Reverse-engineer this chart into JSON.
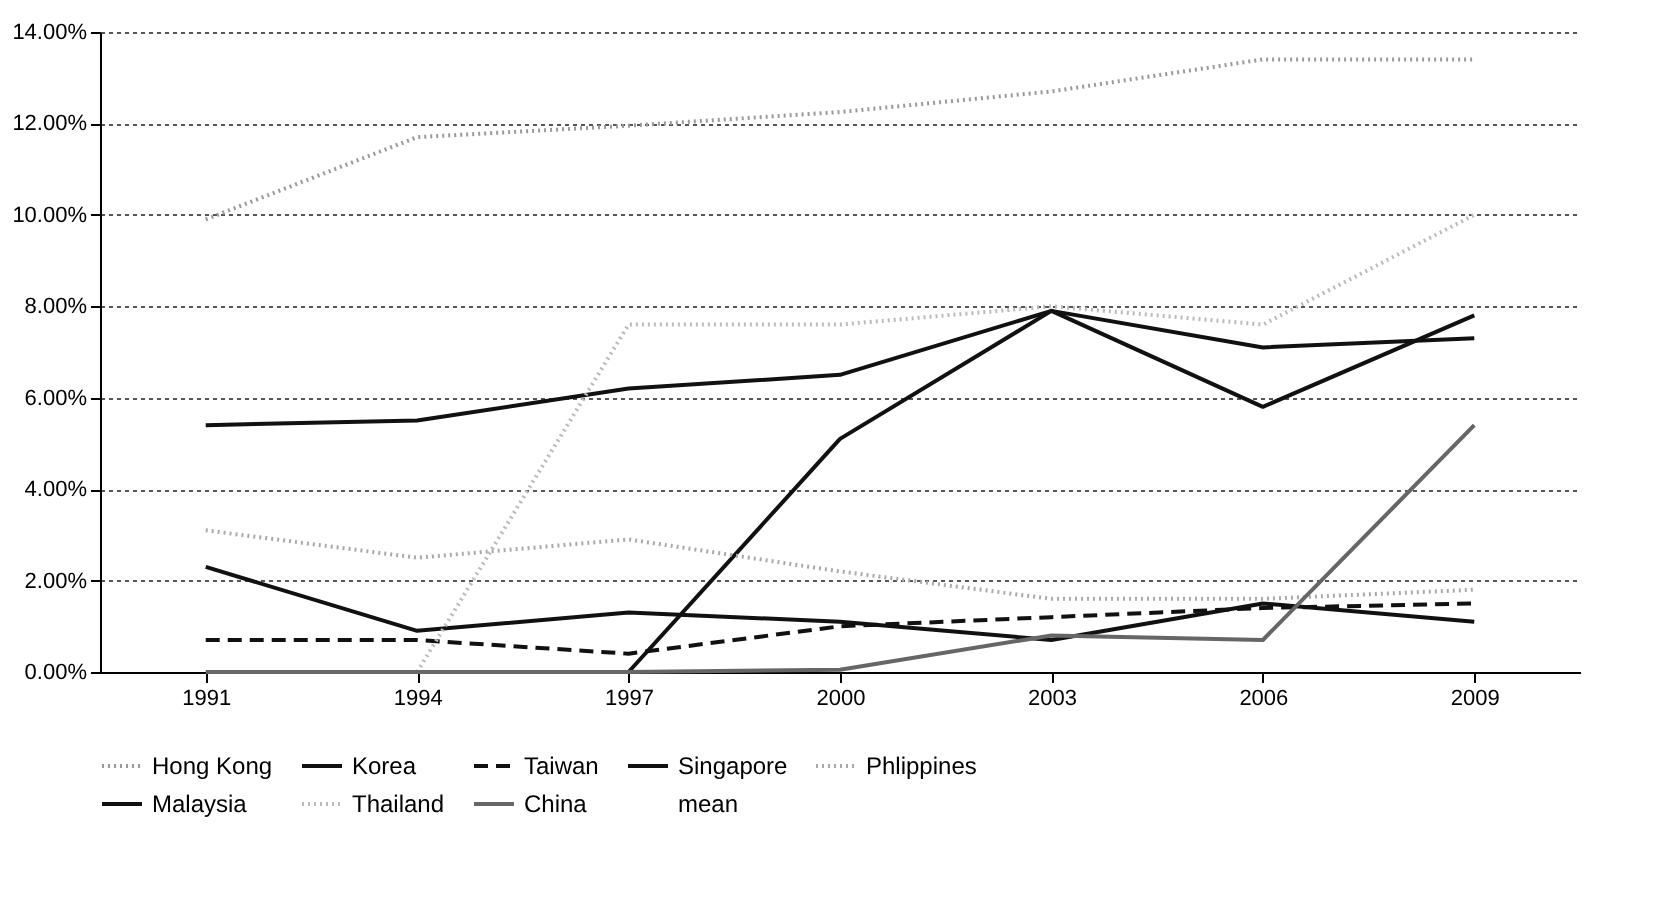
{
  "chart_data": {
    "type": "line",
    "categories": [
      "1991",
      "1994",
      "1997",
      "2000",
      "2003",
      "2006",
      "2009"
    ],
    "series": [
      {
        "name": "Hong Kong",
        "color": "#9a9a9a",
        "line_style": "dotted",
        "values": [
          9.9,
          11.7,
          11.95,
          12.25,
          12.7,
          13.4,
          13.4
        ]
      },
      {
        "name": "Korea",
        "color": "#111111",
        "line_style": "solid",
        "values": [
          5.4,
          5.5,
          6.2,
          6.5,
          7.9,
          7.1,
          7.3
        ]
      },
      {
        "name": "Taiwan",
        "color": "#111111",
        "line_style": "dashed",
        "values": [
          0.7,
          0.7,
          0.4,
          1.0,
          1.2,
          1.4,
          1.5
        ]
      },
      {
        "name": "Singapore",
        "color": "#111111",
        "line_style": "solid",
        "values": [
          null,
          null,
          0.0,
          5.1,
          7.9,
          5.8,
          7.8
        ]
      },
      {
        "name": "Phlippines",
        "color": "#aaaaaa",
        "line_style": "dotted",
        "values": [
          3.1,
          2.5,
          2.9,
          2.2,
          1.6,
          1.6,
          1.8
        ]
      },
      {
        "name": "Malaysia",
        "color": "#111111",
        "line_style": "solid",
        "values": [
          2.3,
          0.9,
          1.3,
          1.1,
          0.7,
          1.5,
          1.1
        ]
      },
      {
        "name": "Thailand",
        "color": "#bbbbbb",
        "line_style": "dotted",
        "values": [
          null,
          0.0,
          7.6,
          7.6,
          8.0,
          7.6,
          10.0
        ]
      },
      {
        "name": "China",
        "color": "#666666",
        "line_style": "solid",
        "values": [
          0.0,
          0.0,
          0.0,
          0.05,
          0.8,
          0.7,
          5.4
        ]
      },
      {
        "name": "mean",
        "values": [
          null,
          null,
          null,
          null,
          null,
          null,
          null
        ]
      }
    ],
    "ylim": [
      0,
      14
    ],
    "yticks": [
      {
        "value": 0,
        "label": "0.00%"
      },
      {
        "value": 2,
        "label": "2.00%"
      },
      {
        "value": 4,
        "label": "4.00%"
      },
      {
        "value": 6,
        "label": "6.00%"
      },
      {
        "value": 8,
        "label": "8.00%"
      },
      {
        "value": 10,
        "label": "10.00%"
      },
      {
        "value": 12,
        "label": "12.00%"
      },
      {
        "value": 14,
        "label": "14.00%"
      }
    ],
    "grid": "y",
    "legend": "bottom"
  }
}
